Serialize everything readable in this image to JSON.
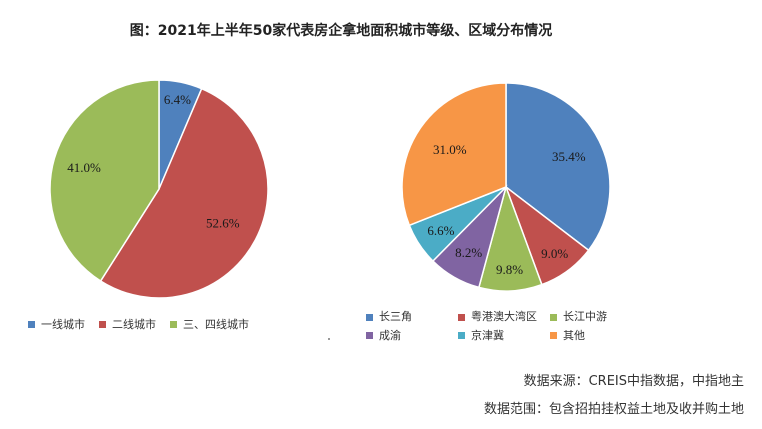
{
  "title": "图：2021年上半年50家代表房企拿地面积城市等级、区域分布情况",
  "chart_data": [
    {
      "type": "pie",
      "categories": [
        "一线城市",
        "二线城市",
        "三、四线城市"
      ],
      "values": [
        6.4,
        52.6,
        41.0
      ],
      "labels": [
        "6.4%",
        "52.6%",
        "41.0%"
      ],
      "colors": [
        "#4F81BD",
        "#C0504D",
        "#9BBB59"
      ],
      "legend_position": "bottom"
    },
    {
      "type": "pie",
      "categories": [
        "长三角",
        "粤港澳大湾区",
        "长江中游",
        "成渝",
        "京津冀",
        "其他"
      ],
      "values": [
        35.4,
        9.0,
        9.8,
        8.2,
        6.6,
        31.0
      ],
      "labels": [
        "35.4%",
        "9.0%",
        "9.8%",
        "8.2%",
        "6.6%",
        "31.0%"
      ],
      "colors": [
        "#4F81BD",
        "#C0504D",
        "#9BBB59",
        "#8064A2",
        "#4BACC6",
        "#F79646"
      ],
      "legend_position": "bottom"
    }
  ],
  "source_line1": "数据来源：CREIS中指数据，中指地主",
  "source_line2": "数据范围：包含招拍挂权益土地及收并购土地"
}
